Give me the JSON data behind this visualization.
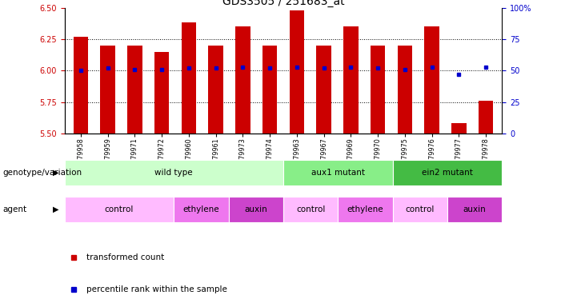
{
  "title": "GDS3505 / 251683_at",
  "samples": [
    "GSM179958",
    "GSM179959",
    "GSM179971",
    "GSM179972",
    "GSM179960",
    "GSM179961",
    "GSM179973",
    "GSM179974",
    "GSM179963",
    "GSM179967",
    "GSM179969",
    "GSM179970",
    "GSM179975",
    "GSM179976",
    "GSM179977",
    "GSM179978"
  ],
  "red_values": [
    6.27,
    6.2,
    6.2,
    6.15,
    6.38,
    6.2,
    6.35,
    6.2,
    6.48,
    6.2,
    6.35,
    6.2,
    6.2,
    6.35,
    5.58,
    5.76
  ],
  "blue_values": [
    6.0,
    6.02,
    6.01,
    6.01,
    6.02,
    6.02,
    6.03,
    6.02,
    6.03,
    6.02,
    6.03,
    6.02,
    6.01,
    6.03,
    5.97,
    6.03
  ],
  "ylim": [
    5.5,
    6.5
  ],
  "yticks": [
    5.5,
    5.75,
    6.0,
    6.25,
    6.5
  ],
  "right_yticks": [
    0,
    25,
    50,
    75,
    100
  ],
  "right_ylim": [
    0,
    100
  ],
  "hlines": [
    5.75,
    6.0,
    6.25
  ],
  "bar_color": "#cc0000",
  "dot_color": "#0000cc",
  "bar_bottom": 5.5,
  "genotype_groups": [
    {
      "label": "wild type",
      "start": 0,
      "end": 8,
      "color": "#ccffcc"
    },
    {
      "label": "aux1 mutant",
      "start": 8,
      "end": 12,
      "color": "#88ee88"
    },
    {
      "label": "ein2 mutant",
      "start": 12,
      "end": 16,
      "color": "#44bb44"
    }
  ],
  "agent_groups": [
    {
      "label": "control",
      "start": 0,
      "end": 4,
      "color": "#ffbbff"
    },
    {
      "label": "ethylene",
      "start": 4,
      "end": 6,
      "color": "#ee77ee"
    },
    {
      "label": "auxin",
      "start": 6,
      "end": 8,
      "color": "#cc44cc"
    },
    {
      "label": "control",
      "start": 8,
      "end": 10,
      "color": "#ffbbff"
    },
    {
      "label": "ethylene",
      "start": 10,
      "end": 12,
      "color": "#ee77ee"
    },
    {
      "label": "control",
      "start": 12,
      "end": 14,
      "color": "#ffbbff"
    },
    {
      "label": "auxin",
      "start": 14,
      "end": 16,
      "color": "#cc44cc"
    }
  ],
  "legend_red": "transformed count",
  "legend_blue": "percentile rank within the sample",
  "left_label": "genotype/variation",
  "agent_label": "agent",
  "right_axis_color": "#0000cc",
  "left_axis_color": "#cc0000",
  "tick_fontsize": 7,
  "title_fontsize": 10
}
